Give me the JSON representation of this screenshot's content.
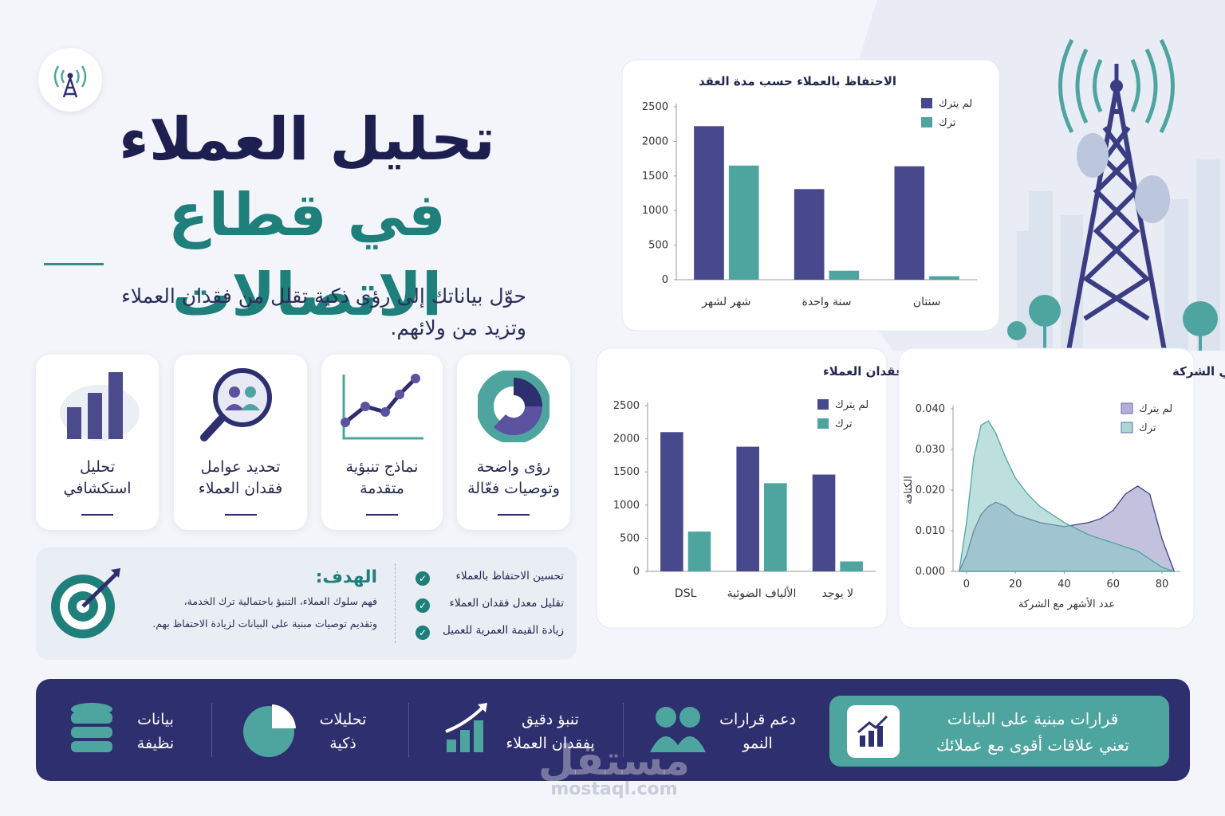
{
  "header": {
    "title_line1": "تحليل العملاء",
    "title_line2": "في قطاع الاتصالات",
    "subtitle": [
      "حوّل بياناتك إلى رؤى ذكية تقلل من فقدان العملاء",
      "وتزيد من ولائهم."
    ]
  },
  "features": [
    {
      "lines": [
        "رؤى واضحة",
        "وتوصيات فعّالة"
      ]
    },
    {
      "lines": [
        "نماذج تنبؤية",
        "متقدمة"
      ]
    },
    {
      "lines": [
        "تحديد عوامل",
        "فقدان العملاء"
      ]
    },
    {
      "lines": [
        "تحليل",
        "استكشافي"
      ]
    }
  ],
  "goal": {
    "title": "الهدف:",
    "text": [
      "فهم سلوك العملاء، التنبؤ باحتمالية ترك الخدمة،",
      "وتقديم توصيات مبنية على البيانات لزيادة الاحتفاظ بهم."
    ],
    "items": [
      "تحسين الاحتفاظ بالعملاء",
      "تقليل معدل فقدان العملاء",
      "زيادة القيمة العمرية للعميل"
    ]
  },
  "chart_data": [
    {
      "type": "bar",
      "title": "الاحتفاظ بالعملاء حسب مدة العقد",
      "categories": [
        "شهر لشهر",
        "سنة واحدة",
        "سنتان"
      ],
      "series": [
        {
          "name": "لم يترك",
          "color": "#48488c",
          "values": [
            2220,
            1310,
            1640
          ]
        },
        {
          "name": "ترك",
          "color": "#4ea5a0",
          "values": [
            1650,
            130,
            50
          ]
        }
      ],
      "ylim": [
        0,
        2500
      ],
      "yticks": [
        0,
        500,
        1000,
        1500,
        2000,
        2500
      ],
      "legend": "upper right"
    },
    {
      "type": "bar",
      "title": "تأثير نوع الخدمة على فقدان العملاء",
      "categories": [
        "DSL",
        "الألياف الضوئية",
        "لا يوجد"
      ],
      "series": [
        {
          "name": "لم يترك",
          "color": "#48488c",
          "values": [
            2100,
            1880,
            1460
          ]
        },
        {
          "name": "ترك",
          "color": "#4ea5a0",
          "values": [
            600,
            1330,
            150
          ]
        }
      ],
      "ylim": [
        0,
        2500
      ],
      "yticks": [
        0,
        500,
        1000,
        1500,
        2000,
        2500
      ],
      "legend": "upper right"
    },
    {
      "type": "area",
      "title": "توزيع العملاء حسب مدة بقائهم في الشركة",
      "x_label": "عدد الأشهر مع الشركة",
      "y_label": "الكثافة",
      "x": [
        -3,
        0,
        3,
        6,
        9,
        12,
        16,
        20,
        25,
        30,
        40,
        50,
        55,
        60,
        65,
        70,
        75,
        80,
        85
      ],
      "series": [
        {
          "name": "لم يترك",
          "color": "#8f8fc4",
          "values": [
            0,
            0.004,
            0.01,
            0.014,
            0.016,
            0.017,
            0.016,
            0.014,
            0.013,
            0.012,
            0.011,
            0.012,
            0.013,
            0.015,
            0.019,
            0.021,
            0.019,
            0.008,
            0
          ]
        },
        {
          "name": "ترك",
          "color": "#86c6c4",
          "values": [
            0,
            0.012,
            0.028,
            0.036,
            0.037,
            0.034,
            0.028,
            0.023,
            0.019,
            0.016,
            0.012,
            0.009,
            0.008,
            0.007,
            0.006,
            0.005,
            0.003,
            0.001,
            0
          ]
        }
      ],
      "xlim": [
        -5.5,
        87.5
      ],
      "xticks": [
        0,
        20,
        40,
        60,
        80
      ],
      "ylim": [
        0,
        0.04
      ],
      "yticks": [
        {
          "value": 0,
          "label": "0.000"
        },
        {
          "value": 0.01,
          "label": "0.010"
        },
        {
          "value": 0.02,
          "label": "0.020"
        },
        {
          "value": 0.03,
          "label": "0.030"
        },
        {
          "value": 0.04,
          "label": "0.040"
        }
      ],
      "legend": "upper right"
    }
  ],
  "footer": {
    "highlight": [
      "قرارات مبنية على البيانات",
      "تعني علاقات أقوى مع عملائك"
    ],
    "items": [
      {
        "lines": [
          "دعم قرارات",
          "النمو"
        ]
      },
      {
        "lines": [
          "تنبؤ دقيق",
          "بفقدان العملاء"
        ]
      },
      {
        "lines": [
          "تحليلات",
          "ذكية"
        ]
      },
      {
        "lines": [
          "بيانات",
          "نظيفة"
        ]
      }
    ]
  },
  "watermark": {
    "brand": "مستقل",
    "url": "mostaql.com"
  }
}
